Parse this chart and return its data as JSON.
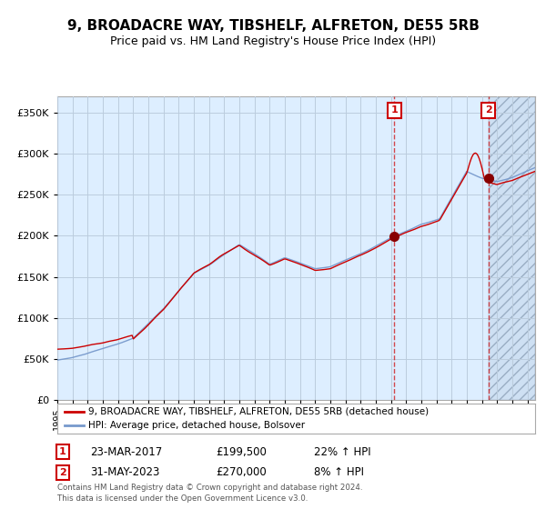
{
  "title": "9, BROADACRE WAY, TIBSHELF, ALFRETON, DE55 5RB",
  "subtitle": "Price paid vs. HM Land Registry's House Price Index (HPI)",
  "legend_line1": "9, BROADACRE WAY, TIBSHELF, ALFRETON, DE55 5RB (detached house)",
  "legend_line2": "HPI: Average price, detached house, Bolsover",
  "annotation1_label": "1",
  "annotation1_date": "23-MAR-2017",
  "annotation1_price": "£199,500",
  "annotation1_hpi": "22% ↑ HPI",
  "annotation2_label": "2",
  "annotation2_date": "31-MAY-2023",
  "annotation2_price": "£270,000",
  "annotation2_hpi": "8% ↑ HPI",
  "footer_line1": "Contains HM Land Registry data © Crown copyright and database right 2024.",
  "footer_line2": "This data is licensed under the Open Government Licence v3.0.",
  "red_color": "#cc0000",
  "blue_color": "#7799cc",
  "background_color": "#ddeeff",
  "grid_color": "#bbccdd",
  "sale1_x": 2017.23,
  "sale2_x": 2023.42,
  "sale1_y": 199500,
  "sale2_y": 270000,
  "ylim": [
    0,
    370000
  ],
  "xlim_start": 1995.0,
  "xlim_end": 2026.5
}
